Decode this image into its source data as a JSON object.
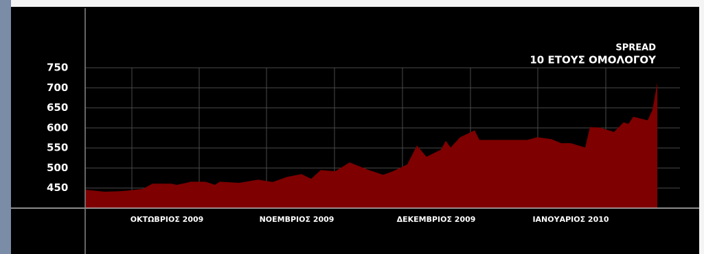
{
  "chart_data": {
    "type": "area",
    "title": "SPREAD",
    "subtitle": "10 ΕΤΟΥΣ ΟΜΟΛΟΓΟΥ",
    "x": [
      0,
      4,
      7,
      9,
      12,
      14,
      18,
      19,
      21,
      22,
      25,
      27,
      28,
      32,
      36,
      39,
      42,
      45,
      47,
      49,
      52,
      55,
      59,
      62,
      64,
      67,
      69,
      71,
      74,
      75,
      76,
      78,
      81,
      82,
      88,
      92,
      94,
      97,
      99,
      101,
      104,
      105,
      107,
      110,
      112,
      113,
      114,
      117,
      118,
      119
    ],
    "values": [
      446,
      441,
      442,
      444,
      448,
      461,
      461,
      458,
      463,
      466,
      466,
      458,
      466,
      463,
      471,
      465,
      478,
      485,
      473,
      495,
      492,
      514,
      495,
      483,
      492,
      509,
      556,
      528,
      546,
      568,
      551,
      577,
      594,
      570,
      570,
      570,
      577,
      572,
      562,
      562,
      551,
      602,
      601,
      590,
      614,
      610,
      628,
      619,
      645,
      713
    ],
    "color": "#7e0000",
    "xlim": [
      0,
      124
    ],
    "xticks": [
      {
        "value": 17,
        "label": "ΟΚΤΩΒΡΙΟΣ 2009"
      },
      {
        "value": 44,
        "label": "ΝΟΕΜΒΡΙΟΣ 2009"
      },
      {
        "value": 73,
        "label": "ΔΕΚΕΜΒΡΙΟΣ 2009"
      },
      {
        "value": 101,
        "label": "ΙΑΝΟΥΑΡΙΟΣ 2010"
      }
    ],
    "ylim": [
      400,
      750
    ],
    "yticks": [
      450,
      500,
      550,
      600,
      650,
      700,
      750
    ],
    "grid": true
  }
}
